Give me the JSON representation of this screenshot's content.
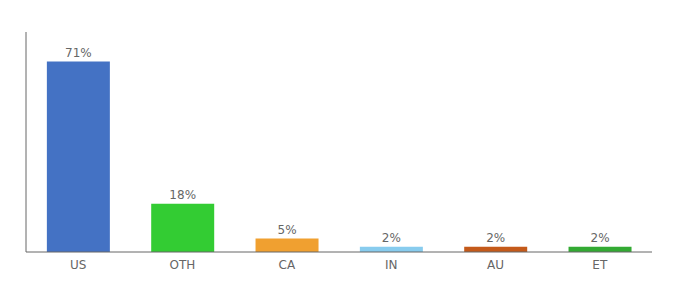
{
  "chart_data": {
    "type": "bar",
    "categories": [
      "US",
      "OTH",
      "CA",
      "IN",
      "AU",
      "ET"
    ],
    "values": [
      71,
      18,
      5,
      2,
      2,
      2
    ],
    "value_labels": [
      "71%",
      "18%",
      "5%",
      "2%",
      "2%",
      "2%"
    ],
    "colors": [
      "#4472c4",
      "#33cc33",
      "#f0a030",
      "#88ccee",
      "#c45a1a",
      "#33aa33"
    ],
    "ylim": [
      0,
      82
    ],
    "grid": false,
    "data_labels": true,
    "tick_labels": "x"
  }
}
